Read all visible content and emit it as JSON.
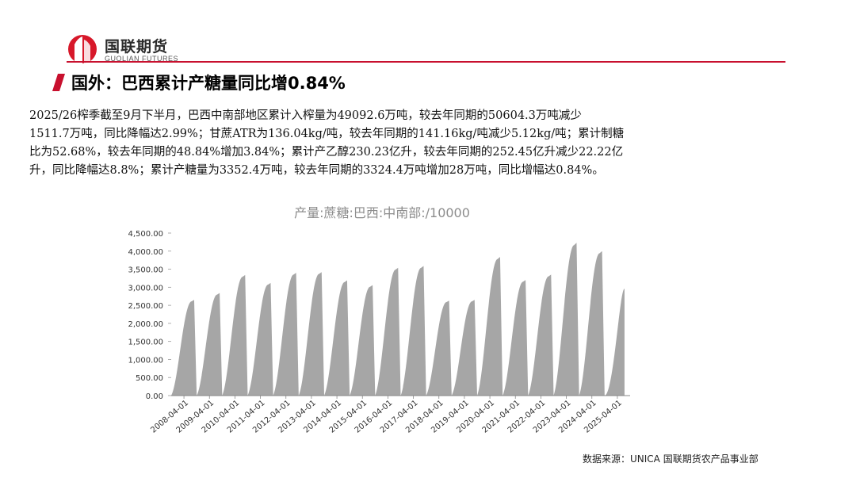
{
  "header": {
    "logo_cn": "国联期货",
    "logo_en": "GUOLIAN FUTURES",
    "title": "国外：巴西累计产糖量同比增0.84%"
  },
  "description_lines": [
    "2025/26榨季截至9月下半月，巴西中南部地区累计入榨量为49092.6万吨，较去年同期的50604.3万吨减少",
    "1511.7万吨，同比降幅达2.99%；甘蔗ATR为136.04kg/吨，较去年同期的141.16kg/吨减少5.12kg/吨；累计制糖",
    "比为52.68%，较去年同期的48.84%增加3.84%；累计产乙醇230.23亿升，较去年同期的252.45亿升减少22.22亿",
    "升，同比降幅达8.8%；累计产糖量为3352.4万吨，较去年同期的3324.4万吨增加28万吨，同比增幅达0.84%。"
  ],
  "source": "数据来源：UNICA 国联期货农产品事业部",
  "chart_data": {
    "type": "area",
    "title": "产量:蔗糖:巴西:中南部:/10000",
    "xlabel": "",
    "ylabel": "",
    "ylim": [
      0,
      4500
    ],
    "y_ticks": [
      "0.00",
      "500.00",
      "1,000.00",
      "1,500.00",
      "2,000.00",
      "2,500.00",
      "3,000.00",
      "3,500.00",
      "4,000.00",
      "4,500.00"
    ],
    "x_ticks": [
      "2008-04-01",
      "2009-04-01",
      "2010-04-01",
      "2011-04-01",
      "2012-04-01",
      "2013-04-01",
      "2014-04-01",
      "2015-04-01",
      "2016-04-01",
      "2017-04-01",
      "2018-04-01",
      "2019-04-01",
      "2020-04-01",
      "2021-04-01",
      "2022-04-01",
      "2023-04-01",
      "2024-04-01",
      "2025-04-01"
    ],
    "grid": false,
    "color": "#a6a6a6",
    "series": [
      {
        "values_by_season": [
          2650,
          2840,
          3340,
          3120,
          3400,
          3420,
          3190,
          3060,
          3540,
          3590,
          2630,
          2650,
          3840,
          3200,
          3350,
          4230,
          4000,
          2960
        ]
      }
    ]
  }
}
